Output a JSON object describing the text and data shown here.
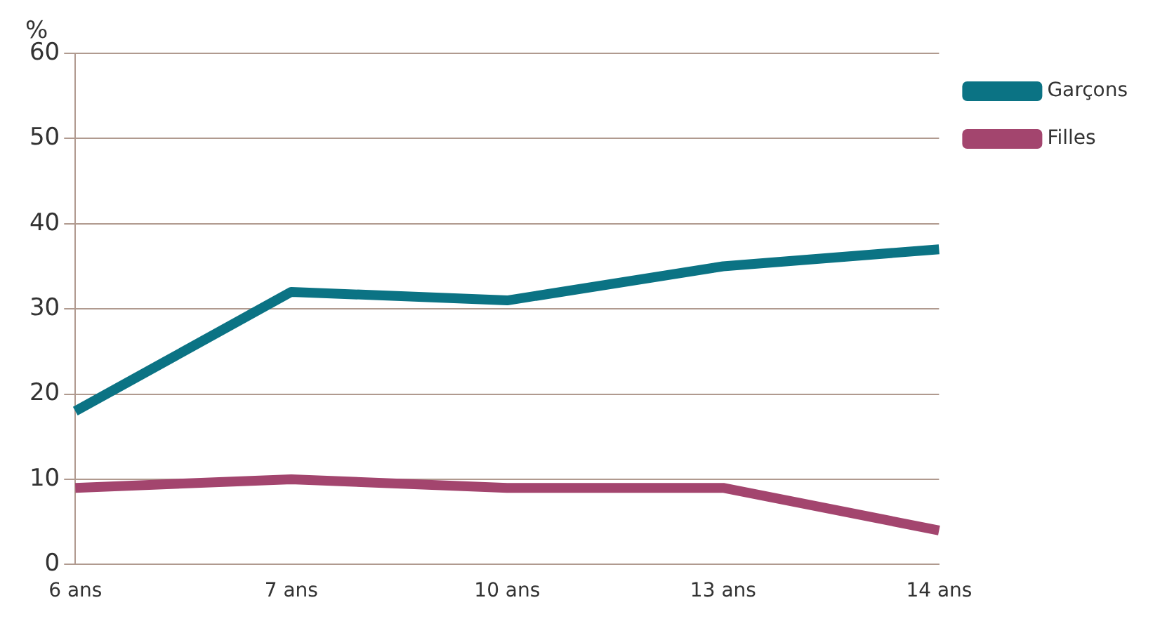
{
  "chart_data": {
    "type": "line",
    "ylabel": "%",
    "categories": [
      "6 ans",
      "7 ans",
      "10 ans",
      "13 ans",
      "14 ans"
    ],
    "series": [
      {
        "name": "Garçons",
        "color": "#0b7384",
        "values": [
          18,
          32,
          31,
          35,
          37
        ]
      },
      {
        "name": "Filles",
        "color": "#a3456e",
        "values": [
          9,
          10,
          9,
          9,
          4
        ]
      }
    ],
    "ylim": [
      0,
      60
    ],
    "yticks": [
      0,
      10,
      20,
      30,
      40,
      50,
      60
    ],
    "grid": "y",
    "legend": "top right",
    "marker": "none",
    "line_style": "solid"
  }
}
